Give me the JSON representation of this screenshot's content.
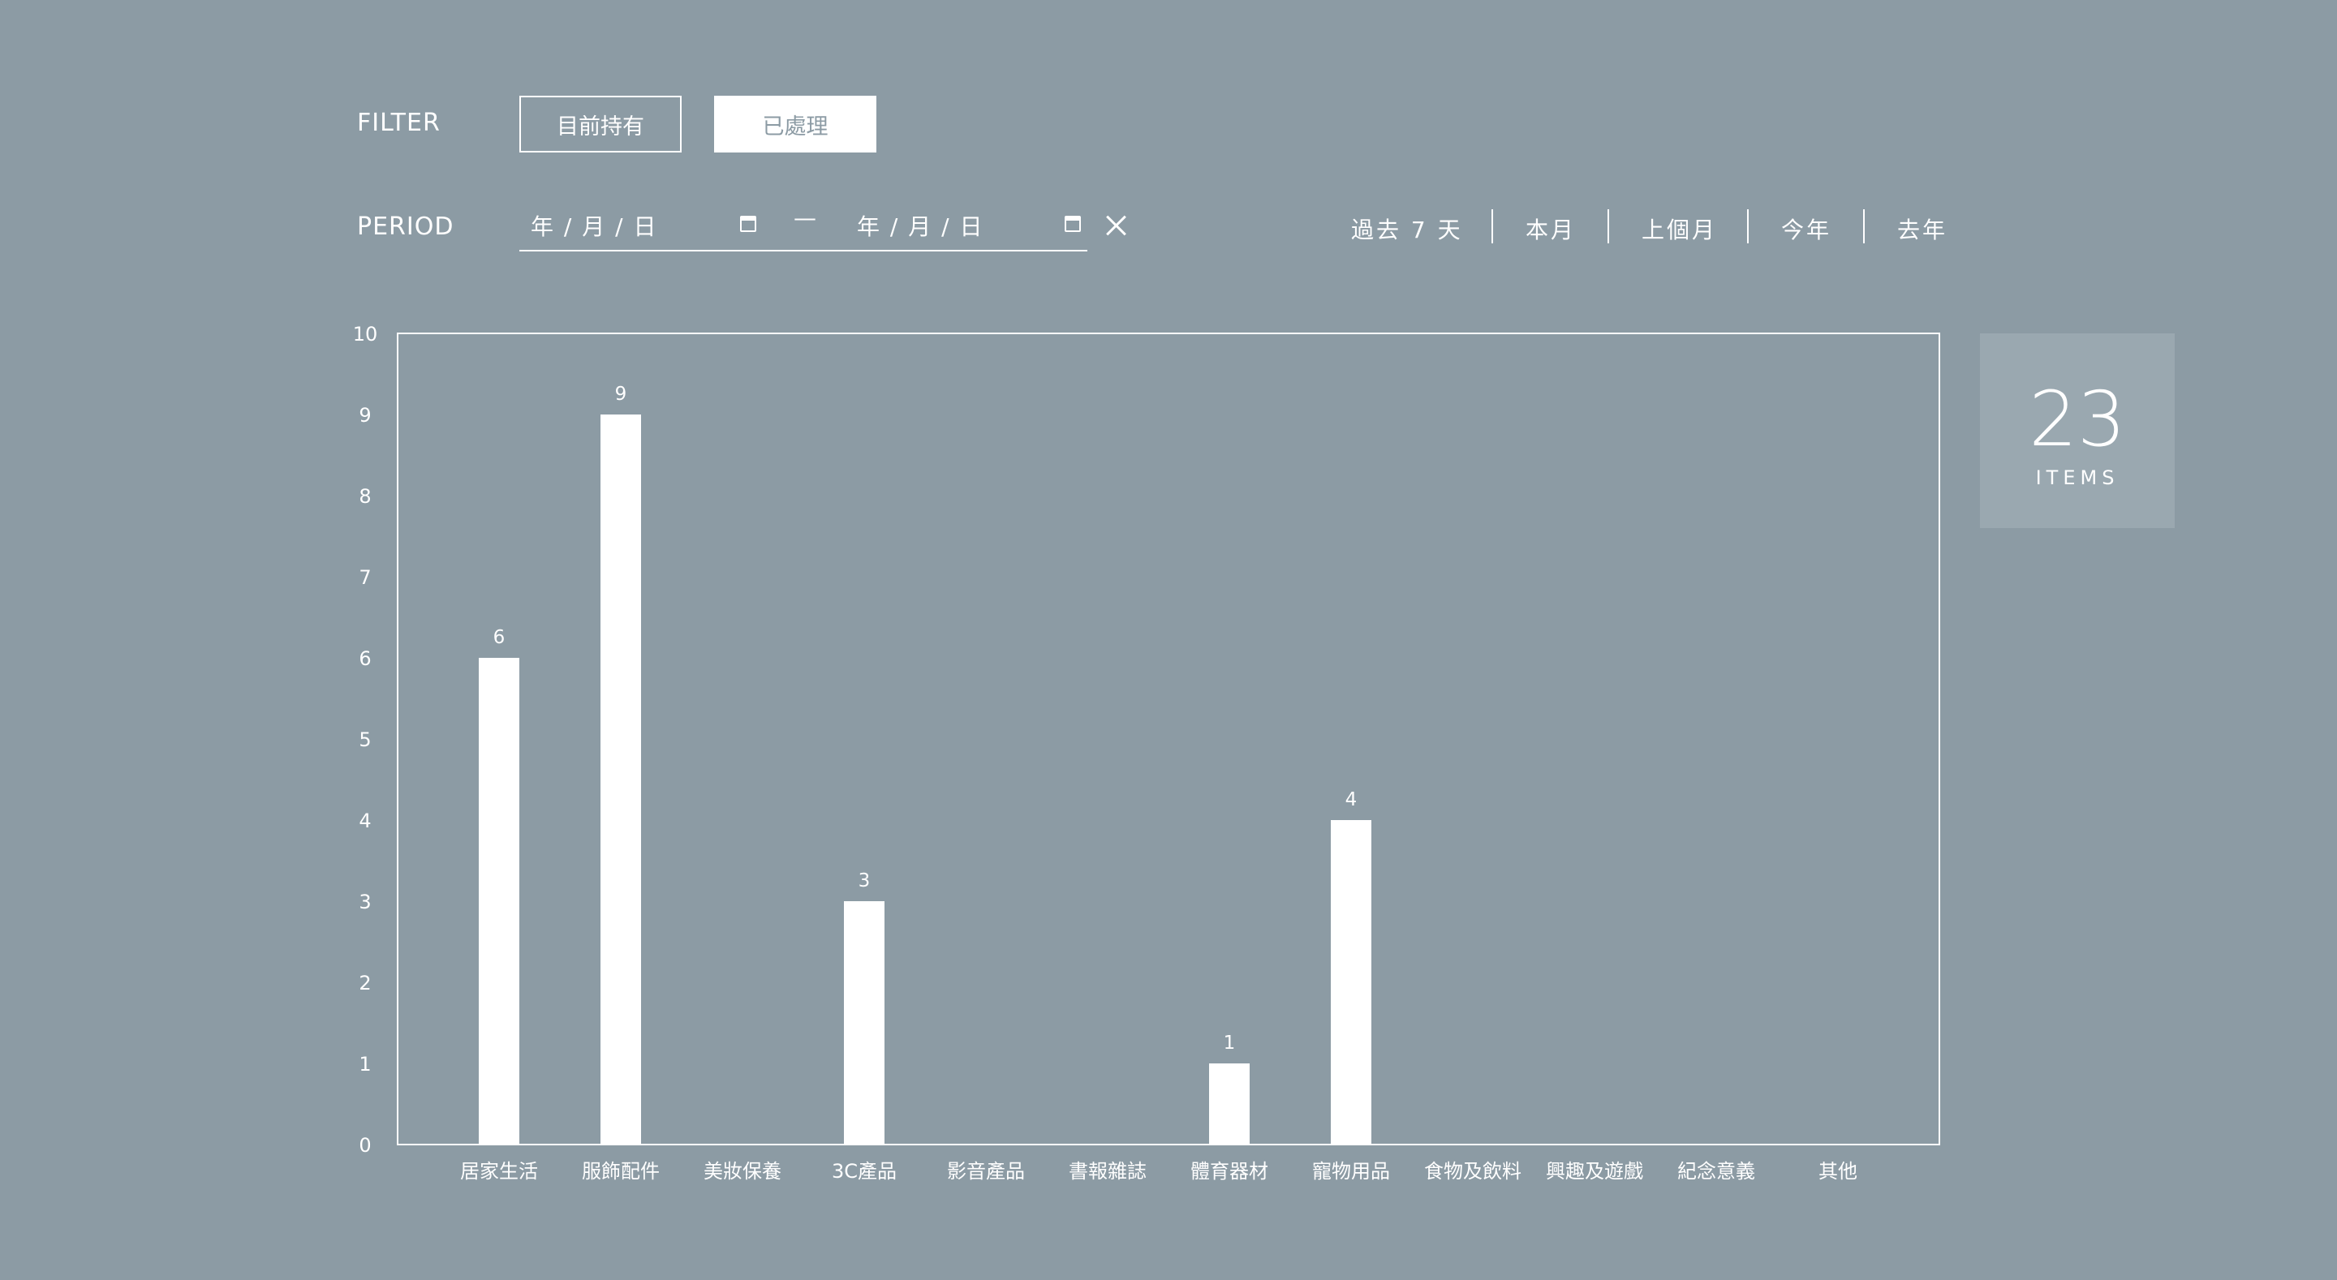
{
  "filter": {
    "label": "FILTER",
    "options": [
      "目前持有",
      "已處理"
    ],
    "selected": "已處理"
  },
  "period": {
    "label": "PERIOD",
    "start_placeholder": "年 / 月 / 日",
    "end_placeholder": "年 / 月 / 日",
    "range_separator": "—",
    "quick_ranges": [
      "過去 7 天",
      "本月",
      "上個月",
      "今年",
      "去年"
    ]
  },
  "summary": {
    "count": "23",
    "unit": "ITEMS"
  },
  "chart_data": {
    "type": "bar",
    "categories": [
      "居家生活",
      "服飾配件",
      "美妝保養",
      "3C產品",
      "影音產品",
      "書報雜誌",
      "體育器材",
      "寵物用品",
      "食物及飲料",
      "興趣及遊戲",
      "紀念意義",
      "其他"
    ],
    "values": [
      6,
      9,
      0,
      3,
      0,
      0,
      1,
      4,
      0,
      0,
      0,
      0
    ],
    "ylim": [
      0,
      10
    ],
    "yticks": [
      0,
      1,
      2,
      3,
      4,
      5,
      6,
      7,
      8,
      9,
      10
    ],
    "title": "",
    "xlabel": "",
    "ylabel": "",
    "grid": false,
    "bar_color": "#ffffff",
    "background": "#8c9ba4"
  }
}
